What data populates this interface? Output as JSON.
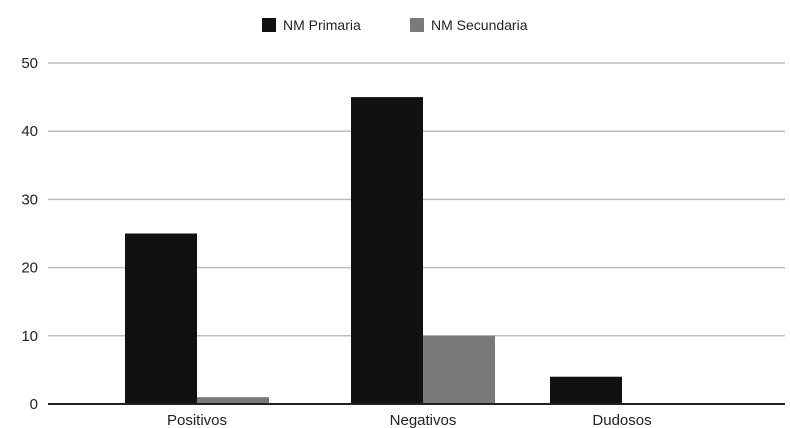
{
  "chart_data": {
    "type": "bar",
    "categories": [
      "Positivos",
      "Negativos",
      "Dudosos"
    ],
    "series": [
      {
        "name": "NM Primaria",
        "values": [
          25,
          45,
          4
        ],
        "color": "#111111"
      },
      {
        "name": "NM Secundaria",
        "values": [
          1,
          10,
          0
        ],
        "color": "#7a7a7a"
      }
    ],
    "ylim": [
      0,
      50
    ],
    "yticks": [
      0,
      10,
      20,
      30,
      40,
      50
    ],
    "grid": true,
    "legend_position": "top-center",
    "gridline_color": "#bdbdbd",
    "axis_color": "#222222"
  }
}
